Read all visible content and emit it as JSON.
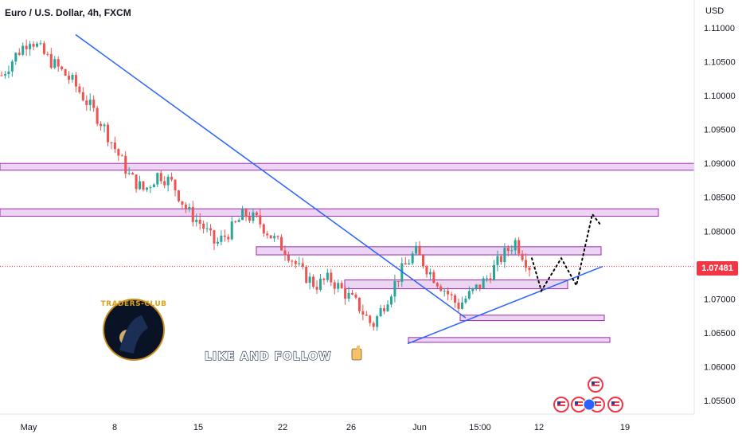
{
  "header": {
    "symbol_title": "Euro / U.S. Dollar, 4h, FXCM",
    "currency_label": "USD",
    "last_price": "1.07481"
  },
  "branding": {
    "logo_text": "TRADERS-CLUB",
    "promo_text": "LIKE AND FOLLOW",
    "promo_icon": "thumbs-up-icon",
    "event_icon": "us-flag-event-icon"
  },
  "colors": {
    "bull": "#26a69a",
    "bear": "#ef5350",
    "trendline": "#2962ff",
    "zone_fill": "#e6c7ef",
    "zone_stroke": "#9c27b0",
    "price_tag": "#f23645",
    "projection": "#000000"
  },
  "chart_data": {
    "type": "candlestick",
    "timeframe": "4h",
    "y_axis_label": "USD",
    "ylim": [
      1.053,
      1.112
    ],
    "y_ticks": [
      "1.11000",
      "1.10500",
      "1.10000",
      "1.09500",
      "1.09000",
      "1.08500",
      "1.08000",
      "1.07500",
      "1.07000",
      "1.06500",
      "1.06000",
      "1.05500"
    ],
    "x_ticks": [
      "May",
      "8",
      "15",
      "22",
      "26",
      "Jun",
      "15:00",
      "12",
      "19"
    ],
    "close_path": [
      1.103,
      1.106,
      1.1085,
      1.106,
      1.104,
      1.102,
      1.099,
      1.096,
      1.092,
      1.088,
      1.086,
      1.0885,
      1.087,
      1.083,
      1.081,
      1.078,
      1.08,
      1.0825,
      1.0815,
      1.079,
      1.077,
      1.074,
      1.072,
      1.073,
      1.071,
      1.069,
      1.066,
      1.07,
      1.074,
      1.077,
      1.074,
      1.0715,
      1.069,
      1.071,
      1.073,
      1.076,
      1.0785,
      1.0748
    ],
    "current_price": 1.07481,
    "zones": [
      {
        "low": 1.089,
        "high": 1.09,
        "extends_to_axis": true
      },
      {
        "low": 1.0822,
        "high": 1.0833,
        "extends_to_axis": false
      },
      {
        "low": 1.0765,
        "high": 1.0777,
        "extends_to_axis": false
      },
      {
        "low": 1.0715,
        "high": 1.0728,
        "extends_to_axis": false
      },
      {
        "low": 1.0668,
        "high": 1.0676,
        "extends_to_axis": false
      },
      {
        "low": 1.0637,
        "high": 1.0643,
        "extends_to_axis": false
      }
    ],
    "trendlines": [
      {
        "name": "downtrend",
        "from_price": 1.109,
        "to_price": 1.0672
      },
      {
        "name": "uptrend",
        "from_price": 1.0634,
        "to_price": 1.0748
      }
    ],
    "projection_path": [
      1.076,
      1.0712,
      1.076,
      1.072,
      1.0825,
      1.081
    ]
  }
}
